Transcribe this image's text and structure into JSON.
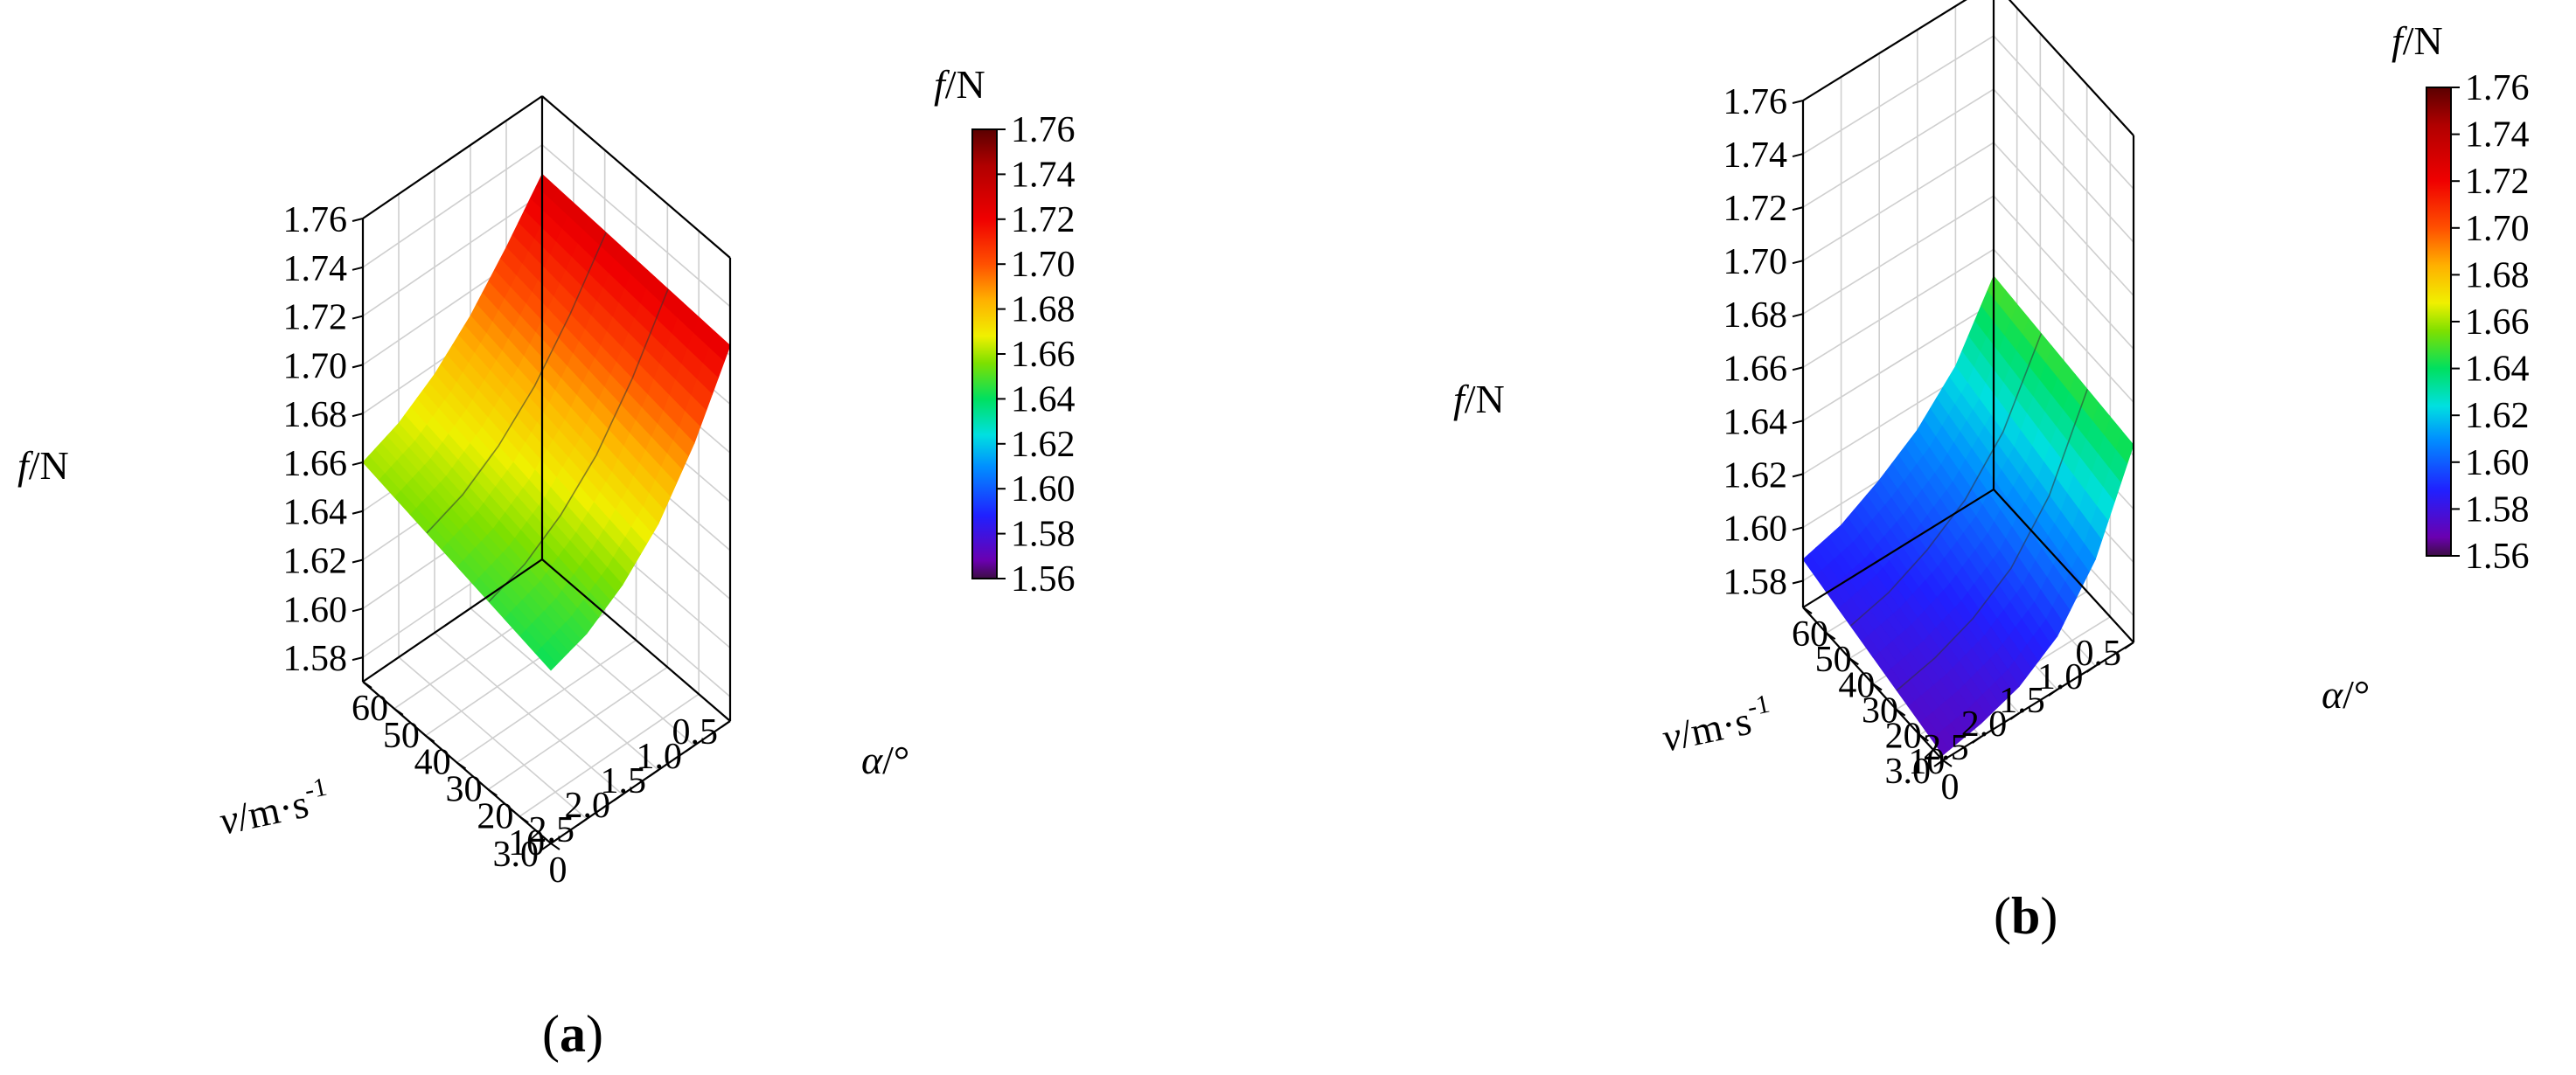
{
  "figure": {
    "panels": [
      {
        "label_open": "(",
        "label_letter": "a",
        "label_close": ")"
      },
      {
        "label_open": "(",
        "label_letter": "b",
        "label_close": ")"
      }
    ]
  },
  "chart_data": [
    {
      "type": "surface3d",
      "x_axis": {
        "label_italic": "v",
        "label_rest": "/m·s",
        "label_sup": "-1",
        "ticks": [
          "0.5",
          "1.0",
          "1.5",
          "2.0",
          "2.5",
          "3.0"
        ],
        "range": [
          0.5,
          3.0
        ]
      },
      "y_axis": {
        "label_italic": "α",
        "label_rest": "/°",
        "ticks": [
          "0",
          "10",
          "20",
          "30",
          "40",
          "50",
          "60"
        ],
        "range": [
          0,
          60
        ]
      },
      "z_axis": {
        "label_italic": "f",
        "label_rest": "/N",
        "ticks": [
          "1.58",
          "1.60",
          "1.62",
          "1.64",
          "1.66",
          "1.68",
          "1.70",
          "1.72",
          "1.74",
          "1.76"
        ],
        "range": [
          1.57,
          1.76
        ]
      },
      "colorbar": {
        "title_italic": "f",
        "title_rest": "/N",
        "ticks": [
          "1.76",
          "1.74",
          "1.72",
          "1.70",
          "1.68",
          "1.66",
          "1.64",
          "1.62",
          "1.60",
          "1.58",
          "1.56"
        ],
        "range": [
          1.56,
          1.76
        ]
      },
      "surface": {
        "v": [
          0.5,
          1.0,
          1.5,
          2.0,
          2.5,
          3.0
        ],
        "alpha": [
          0,
          60
        ],
        "f_at_alpha_0": [
          1.724,
          1.694,
          1.671,
          1.656,
          1.646,
          1.641
        ],
        "f_at_alpha_60": [
          1.728,
          1.708,
          1.69,
          1.676,
          1.666,
          1.66
        ]
      },
      "grid": true
    },
    {
      "type": "surface3d",
      "x_axis": {
        "label_italic": "v",
        "label_rest": "/m·s",
        "label_sup": "-1",
        "ticks": [
          "0.5",
          "1.0",
          "1.5",
          "2.0",
          "2.5",
          "3.0"
        ],
        "range": [
          0.5,
          3.0
        ]
      },
      "y_axis": {
        "label_italic": "α",
        "label_rest": "/°",
        "ticks": [
          "0",
          "10",
          "20",
          "30",
          "40",
          "50",
          "60"
        ],
        "range": [
          0,
          60
        ]
      },
      "z_axis": {
        "label_italic": "f",
        "label_rest": "/N",
        "ticks": [
          "1.58",
          "1.60",
          "1.62",
          "1.64",
          "1.66",
          "1.68",
          "1.70",
          "1.72",
          "1.74",
          "1.76"
        ],
        "range": [
          1.57,
          1.76
        ]
      },
      "colorbar": {
        "title_italic": "f",
        "title_rest": "/N",
        "ticks": [
          "1.76",
          "1.74",
          "1.72",
          "1.70",
          "1.68",
          "1.66",
          "1.64",
          "1.62",
          "1.60",
          "1.58",
          "1.56"
        ],
        "range": [
          1.56,
          1.76
        ]
      },
      "surface": {
        "v": [
          0.5,
          1.0,
          1.5,
          2.0,
          2.5,
          3.0
        ],
        "alpha": [
          0,
          60
        ],
        "f_at_alpha_0": [
          1.644,
          1.61,
          1.59,
          1.58,
          1.575,
          1.572
        ],
        "f_at_alpha_60": [
          1.65,
          1.625,
          1.61,
          1.6,
          1.592,
          1.588
        ]
      },
      "grid": true
    }
  ]
}
